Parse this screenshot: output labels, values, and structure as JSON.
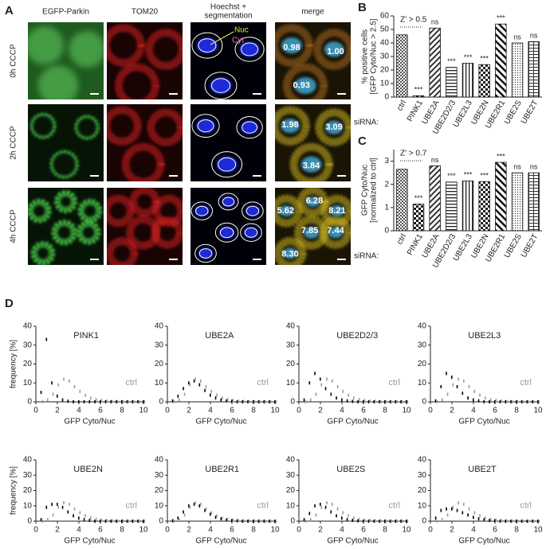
{
  "panel_a": {
    "label": "A",
    "columns": [
      "EGFP-Parkin",
      "TOM20",
      [
        "Hoechst +",
        "segmentation"
      ],
      "merge"
    ],
    "rows": [
      "0h CCCP",
      "2h CCCP",
      "4h CCCP"
    ],
    "annotations": {
      "nuc": "Nuc",
      "cyt": "Cyt"
    },
    "ratios": [
      [
        "0.98",
        "1.00",
        "0.93"
      ],
      [
        "1.98",
        "3.09",
        "3.84"
      ],
      [
        "5.62",
        "6.28",
        "8.21",
        "7.85",
        "7.44",
        "8.30"
      ]
    ]
  },
  "panel_d_label": "D",
  "chart_data": [
    {
      "type": "bar",
      "panel": "B",
      "ylabel": [
        "% positive cells",
        "[GFP Cyto/Nuc > 2.5]"
      ],
      "xlabel_prefix": "siRNA:",
      "annotation": "Z' > 0.5",
      "categories": [
        "ctrl",
        "PINK1",
        "UBE2A",
        "UBE2D2/3",
        "UBE2L3",
        "UBE2N",
        "UBE2R1",
        "UBE2S",
        "UBE2T"
      ],
      "values": [
        46,
        1,
        51,
        22,
        25,
        24,
        54,
        40,
        41
      ],
      "significance": [
        null,
        "***",
        "ns",
        "***",
        "***",
        "***",
        "***",
        "ns",
        "ns"
      ],
      "ylim": [
        0,
        60
      ],
      "yticks": [
        0,
        10,
        20,
        30,
        40,
        50,
        60
      ]
    },
    {
      "type": "bar",
      "panel": "C",
      "ylabel": [
        "GFP Cyto/Nuc",
        "[normalized to ctrl]"
      ],
      "xlabel_prefix": "siRNA:",
      "annotation": "Z' > 0.7",
      "categories": [
        "ctrl",
        "PINK1",
        "UBE2A",
        "UBE2D2/3",
        "UBE2L3",
        "UBE2N",
        "UBE2R1",
        "UBE2S",
        "UBE2T"
      ],
      "values": [
        2.65,
        1.15,
        2.8,
        2.1,
        2.15,
        2.12,
        2.95,
        2.5,
        2.5
      ],
      "significance": [
        null,
        "***",
        "ns",
        "***",
        "***",
        "***",
        "***",
        "ns",
        "ns"
      ],
      "ylim": [
        0,
        3.5
      ],
      "yticks": [
        0,
        1,
        2,
        3
      ]
    },
    {
      "type": "dot",
      "title": "PINK1",
      "ylabel": "frequency [%]",
      "xlabel": "GFP Cyto/Nuc",
      "x": [
        0.5,
        1,
        1.5,
        2,
        2.5,
        3,
        3.5,
        4,
        4.5,
        5,
        5.5,
        6,
        6.5,
        7,
        7.5,
        8,
        8.5,
        9,
        9.5,
        10
      ],
      "series": [
        {
          "color": "#000000",
          "values": [
            5,
            33,
            10,
            3,
            1,
            0.3,
            0,
            0,
            0,
            0,
            0,
            0,
            0,
            0,
            0,
            0,
            0,
            0,
            0,
            0
          ]
        },
        {
          "name": "ctrl",
          "color": "#9a9a9a",
          "values": [
            0,
            1,
            4,
            9,
            12,
            11,
            8,
            5.5,
            3.5,
            2,
            1.2,
            0.7,
            0.4,
            0.2,
            0.1,
            0.1,
            0,
            0,
            0,
            0
          ]
        }
      ],
      "xlim": [
        0,
        10
      ],
      "xticks": [
        0,
        2,
        4,
        6,
        8,
        10
      ],
      "ylim": [
        0,
        40
      ],
      "yticks": [
        0,
        10,
        20,
        30,
        40
      ]
    },
    {
      "type": "dot",
      "title": "UBE2A",
      "xlabel": "GFP Cyto/Nuc",
      "x": [
        0.5,
        1,
        1.5,
        2,
        2.5,
        3,
        3.5,
        4,
        4.5,
        5,
        5.5,
        6,
        6.5,
        7,
        7.5,
        8,
        8.5,
        9,
        9.5,
        10
      ],
      "series": [
        {
          "color": "#000000",
          "values": [
            0.5,
            3,
            7,
            10,
            11,
            9,
            6,
            3.5,
            2,
            1,
            0.5,
            0.3,
            0,
            0,
            0,
            0,
            0,
            0,
            0,
            0
          ]
        },
        {
          "name": "ctrl",
          "color": "#9a9a9a",
          "values": [
            0,
            1,
            4,
            9,
            12,
            11,
            8,
            5.5,
            3.5,
            2,
            1.2,
            0.7,
            0.4,
            0.2,
            0.1,
            0.1,
            0,
            0,
            0,
            0
          ]
        }
      ],
      "xlim": [
        0,
        10
      ],
      "xticks": [
        0,
        2,
        4,
        6,
        8,
        10
      ],
      "ylim": [
        0,
        40
      ],
      "yticks": [
        0,
        10,
        20,
        30,
        40
      ]
    },
    {
      "type": "dot",
      "title": "UBE2D2/3",
      "xlabel": "GFP Cyto/Nuc",
      "x": [
        0.5,
        1,
        1.5,
        2,
        2.5,
        3,
        3.5,
        4,
        4.5,
        5,
        5.5,
        6,
        6.5,
        7,
        7.5,
        8,
        8.5,
        9,
        9.5,
        10
      ],
      "series": [
        {
          "color": "#000000",
          "values": [
            1,
            10,
            15,
            12,
            7,
            4,
            2,
            1,
            0.5,
            0.2,
            0,
            0,
            0,
            0,
            0,
            0,
            0,
            0,
            0,
            0
          ]
        },
        {
          "name": "ctrl",
          "color": "#9a9a9a",
          "values": [
            0,
            1,
            4,
            9,
            12,
            11,
            8,
            5.5,
            3.5,
            2,
            1.2,
            0.7,
            0.4,
            0.2,
            0.1,
            0.1,
            0,
            0,
            0,
            0
          ]
        }
      ],
      "xlim": [
        0,
        10
      ],
      "xticks": [
        0,
        2,
        4,
        6,
        8,
        10
      ],
      "ylim": [
        0,
        40
      ],
      "yticks": [
        0,
        10,
        20,
        30,
        40
      ]
    },
    {
      "type": "dot",
      "title": "UBE2L3",
      "xlabel": "GFP Cyto/Nuc",
      "x": [
        0.5,
        1,
        1.5,
        2,
        2.5,
        3,
        3.5,
        4,
        4.5,
        5,
        5.5,
        6,
        6.5,
        7,
        7.5,
        8,
        8.5,
        9,
        9.5,
        10
      ],
      "series": [
        {
          "color": "#000000",
          "values": [
            0.5,
            8,
            15,
            13,
            8,
            4.5,
            2,
            1,
            0.5,
            0,
            0,
            0,
            0,
            0,
            0,
            0,
            0,
            0,
            0,
            0
          ]
        },
        {
          "name": "ctrl",
          "color": "#9a9a9a",
          "values": [
            0,
            1,
            4,
            9,
            12,
            11,
            8,
            5.5,
            3.5,
            2,
            1.2,
            0.7,
            0.4,
            0.2,
            0.1,
            0.1,
            0,
            0,
            0,
            0
          ]
        }
      ],
      "xlim": [
        0,
        10
      ],
      "xticks": [
        0,
        2,
        4,
        6,
        8,
        10
      ],
      "ylim": [
        0,
        40
      ],
      "yticks": [
        0,
        10,
        20,
        30,
        40
      ]
    },
    {
      "type": "dot",
      "title": "UBE2N",
      "ylabel": "frequency [%]",
      "xlabel": "GFP Cyto/Nuc",
      "x": [
        0.5,
        1,
        1.5,
        2,
        2.5,
        3,
        3.5,
        4,
        4.5,
        5,
        5.5,
        6,
        6.5,
        7,
        7.5,
        8,
        8.5,
        9,
        9.5,
        10
      ],
      "series": [
        {
          "color": "#000000",
          "values": [
            1,
            9,
            11,
            11,
            9,
            6,
            3.5,
            2,
            1,
            0.5,
            0,
            0,
            0,
            0,
            0,
            0,
            0,
            0,
            0,
            0
          ]
        },
        {
          "name": "ctrl",
          "color": "#9a9a9a",
          "values": [
            0,
            1,
            4,
            9,
            12,
            11,
            8,
            5.5,
            3.5,
            2,
            1.2,
            0.7,
            0.4,
            0.2,
            0.1,
            0.1,
            0,
            0,
            0,
            0
          ]
        }
      ],
      "xlim": [
        0,
        10
      ],
      "xticks": [
        0,
        2,
        4,
        6,
        8,
        10
      ],
      "ylim": [
        0,
        40
      ],
      "yticks": [
        0,
        10,
        20,
        30,
        40
      ]
    },
    {
      "type": "dot",
      "title": "UBE2R1",
      "xlabel": "GFP Cyto/Nuc",
      "x": [
        0.5,
        1,
        1.5,
        2,
        2.5,
        3,
        3.5,
        4,
        4.5,
        5,
        5.5,
        6,
        6.5,
        7,
        7.5,
        8,
        8.5,
        9,
        9.5,
        10
      ],
      "series": [
        {
          "color": "#000000",
          "values": [
            0.3,
            2,
            6,
            10,
            11,
            10,
            7,
            4.5,
            2.5,
            1.5,
            0.8,
            0.4,
            0.2,
            0,
            0,
            0,
            0,
            0,
            0,
            0
          ]
        },
        {
          "name": "ctrl",
          "color": "#9a9a9a",
          "values": [
            0,
            1,
            4,
            9,
            12,
            11,
            8,
            5.5,
            3.5,
            2,
            1.2,
            0.7,
            0.4,
            0.2,
            0.1,
            0.1,
            0,
            0,
            0,
            0
          ]
        }
      ],
      "xlim": [
        0,
        10
      ],
      "xticks": [
        0,
        2,
        4,
        6,
        8,
        10
      ],
      "ylim": [
        0,
        40
      ],
      "yticks": [
        0,
        10,
        20,
        30,
        40
      ]
    },
    {
      "type": "dot",
      "title": "UBE2S",
      "xlabel": "GFP Cyto/Nuc",
      "x": [
        0.5,
        1,
        1.5,
        2,
        2.5,
        3,
        3.5,
        4,
        4.5,
        5,
        5.5,
        6,
        6.5,
        7,
        7.5,
        8,
        8.5,
        9,
        9.5,
        10
      ],
      "series": [
        {
          "color": "#000000",
          "values": [
            1,
            5,
            10,
            11,
            9,
            6,
            3.5,
            2,
            1,
            0.5,
            0.2,
            0,
            0,
            0,
            0,
            0,
            0,
            0,
            0,
            0
          ]
        },
        {
          "name": "ctrl",
          "color": "#9a9a9a",
          "values": [
            0,
            1,
            4,
            9,
            12,
            11,
            8,
            5.5,
            3.5,
            2,
            1.2,
            0.7,
            0.4,
            0.2,
            0.1,
            0.1,
            0,
            0,
            0,
            0
          ]
        }
      ],
      "xlim": [
        0,
        10
      ],
      "xticks": [
        0,
        2,
        4,
        6,
        8,
        10
      ],
      "ylim": [
        0,
        40
      ],
      "yticks": [
        0,
        10,
        20,
        30,
        40
      ]
    },
    {
      "type": "dot",
      "title": "UBE2T",
      "xlabel": "GFP Cyto/Nuc",
      "x": [
        0.5,
        1,
        1.5,
        2,
        2.5,
        3,
        3.5,
        4,
        4.5,
        5,
        5.5,
        6,
        6.5,
        7,
        7.5,
        8,
        8.5,
        9,
        9.5,
        10
      ],
      "series": [
        {
          "color": "#000000",
          "values": [
            2,
            7,
            8,
            8,
            7,
            5.5,
            4,
            2.5,
            1.5,
            1,
            0.5,
            0.3,
            0,
            0,
            0,
            0,
            0,
            0,
            0,
            0
          ]
        },
        {
          "name": "ctrl",
          "color": "#9a9a9a",
          "values": [
            0,
            1,
            4,
            9,
            12,
            11,
            8,
            5.5,
            3.5,
            2,
            1.2,
            0.7,
            0.4,
            0.2,
            0.1,
            0.1,
            0,
            0,
            0,
            0
          ]
        }
      ],
      "xlim": [
        0,
        10
      ],
      "xticks": [
        0,
        2,
        4,
        6,
        8,
        10
      ],
      "ylim": [
        0,
        40
      ],
      "yticks": [
        0,
        10,
        20,
        30,
        40
      ]
    }
  ]
}
